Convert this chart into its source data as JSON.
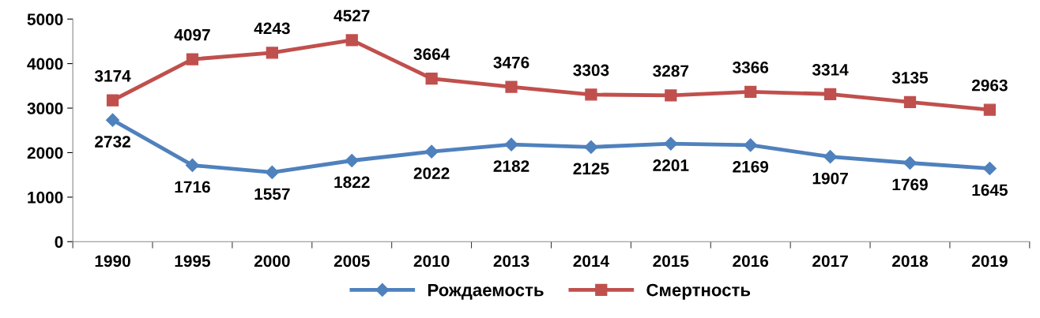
{
  "chart_data": {
    "type": "line",
    "categories": [
      "1990",
      "1995",
      "2000",
      "2005",
      "2010",
      "2013",
      "2014",
      "2015",
      "2016",
      "2017",
      "2018",
      "2019"
    ],
    "series": [
      {
        "name": "Рождаемость",
        "color": "#4f81bd",
        "marker": "diamond",
        "values": [
          2732,
          1716,
          1557,
          1822,
          2022,
          2182,
          2125,
          2201,
          2169,
          1907,
          1769,
          1645
        ]
      },
      {
        "name": "Смертность",
        "color": "#c0504d",
        "marker": "square",
        "values": [
          3174,
          4097,
          4243,
          4527,
          3664,
          3476,
          3303,
          3287,
          3366,
          3314,
          3135,
          2963
        ]
      }
    ],
    "ylim": [
      0,
      5000
    ],
    "yticks": [
      0,
      1000,
      2000,
      3000,
      4000,
      5000
    ],
    "grid": false,
    "legend": "bottom",
    "data_labels": true,
    "line_style": "solid"
  }
}
